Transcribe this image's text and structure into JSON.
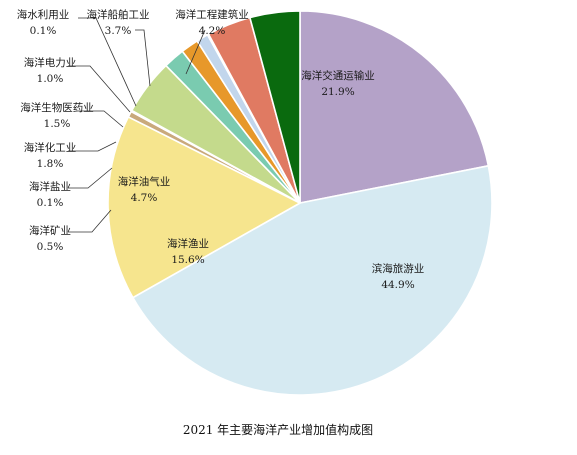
{
  "chart_data": {
    "type": "pie",
    "title": "2021 年主要海洋产业增加值构成图",
    "unit": "%",
    "start": "12 o'clock",
    "direction": "clockwise",
    "slices": [
      {
        "name": "海洋交通运输业",
        "value": 21.9,
        "label": "21.9%",
        "color": "#B4A2C8"
      },
      {
        "name": "滨海旅游业",
        "value": 44.9,
        "label": "44.9%",
        "color": "#D6EAF2"
      },
      {
        "name": "海洋渔业",
        "value": 15.6,
        "label": "15.6%",
        "color": "#F6E58E"
      },
      {
        "name": "海洋矿业",
        "value": 0.5,
        "label": "0.5%",
        "color": "#C9A97C"
      },
      {
        "name": "海洋盐业",
        "value": 0.1,
        "label": "0.1%",
        "color": "#9C8460"
      },
      {
        "name": "海洋油气业",
        "value": 4.7,
        "label": "4.7%",
        "color": "#C4DA8C"
      },
      {
        "name": "海洋化工业",
        "value": 1.8,
        "label": "1.8%",
        "color": "#7ACBB0"
      },
      {
        "name": "海洋生物医药业",
        "value": 1.5,
        "label": "1.5%",
        "color": "#E7982A"
      },
      {
        "name": "海洋电力业",
        "value": 1.0,
        "label": "1.0%",
        "color": "#C2D6EC"
      },
      {
        "name": "海水利用业",
        "value": 0.1,
        "label": "0.1%",
        "color": "#F2DDE6"
      },
      {
        "name": "海洋船舶工业",
        "value": 3.7,
        "label": "3.7%",
        "color": "#E07A62"
      },
      {
        "name": "海洋工程建筑业",
        "value": 4.2,
        "label": "4.2%",
        "color": "#0A6A0E"
      }
    ]
  }
}
